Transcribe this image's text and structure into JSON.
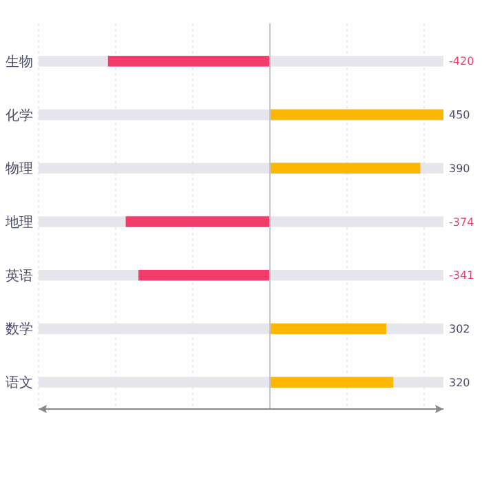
{
  "chart_data": {
    "type": "bar",
    "orientation": "horizontal",
    "categories": [
      "生物",
      "化学",
      "物理",
      "地理",
      "英语",
      "数学",
      "语文"
    ],
    "values": [
      -420,
      450,
      390,
      -374,
      -341,
      302,
      320
    ],
    "colors": [
      "#f23c6b",
      "#fbb702",
      "#fbb702",
      "#f23c6b",
      "#f23c6b",
      "#fbb702",
      "#fbb702"
    ],
    "xlim": [
      -600,
      450
    ],
    "xticks": [
      {
        "value": -600,
        "label": null
      },
      {
        "value": -400,
        "label": null
      },
      {
        "value": -200,
        "label": null
      },
      {
        "value": 0,
        "label": null
      },
      {
        "value": 200,
        "label": null
      },
      {
        "value": 400,
        "label": null
      }
    ],
    "tick_labels": "y",
    "grid": "x",
    "data_labels": true
  }
}
